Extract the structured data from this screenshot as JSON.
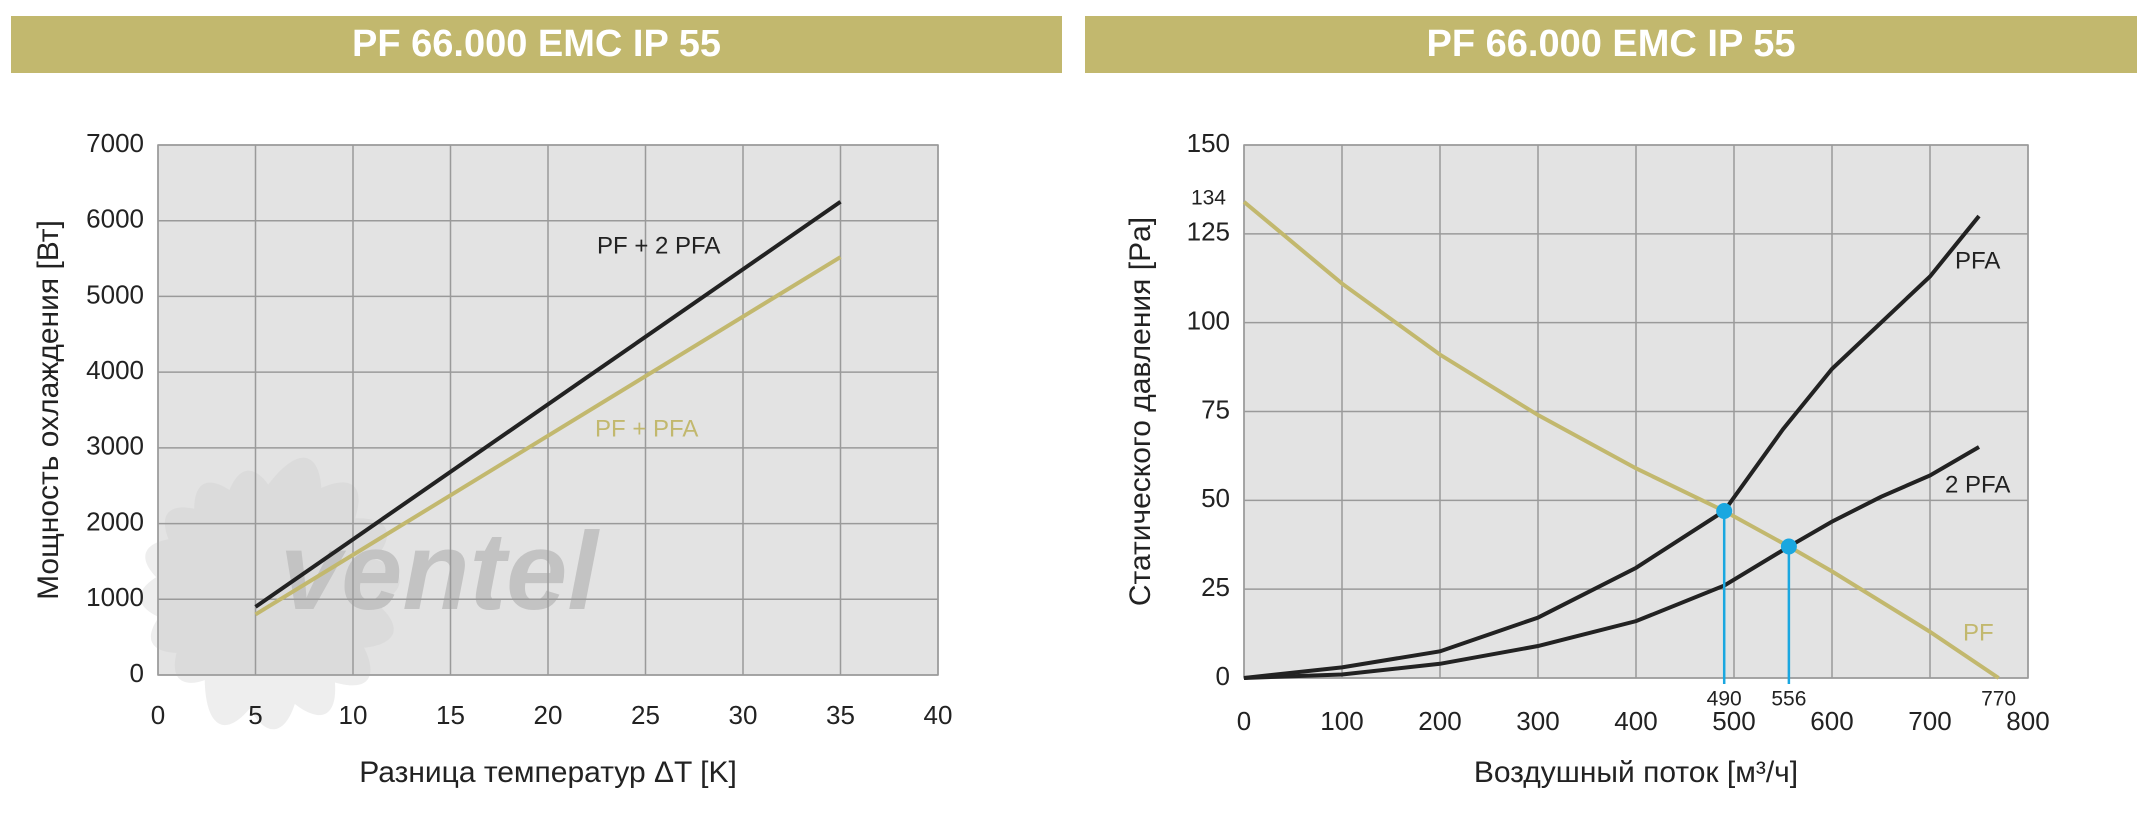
{
  "chart_data": [
    {
      "type": "line",
      "title": "PF 66.000 EMC IP 55",
      "watermark": "ventel",
      "x_label": "Разница температур ΔT [K]",
      "y_label": "Мощность охлаждения [Вт]",
      "x": [
        5,
        35
      ],
      "series": [
        {
          "name": "PF + 2 PFA",
          "color": "#222222",
          "values": [
            900,
            6250
          ]
        },
        {
          "name": "PF + PFA",
          "color": "#c2b86e",
          "values": [
            800,
            5520
          ]
        }
      ],
      "xlim": [
        0,
        40
      ],
      "xticks": [
        0,
        5,
        10,
        15,
        20,
        25,
        30,
        35,
        40
      ],
      "ylim": [
        0,
        7000
      ],
      "yticks": [
        0,
        1000,
        2000,
        3000,
        4000,
        5000,
        6000,
        7000
      ],
      "grid": true
    },
    {
      "type": "line",
      "title": "PF 66.000 EMC IP 55",
      "x_label": "Воздушный поток [м³/ч]",
      "y_label": "Статического давления [Pa]",
      "series": [
        {
          "name": "PF",
          "color": "#c2b86e",
          "x": [
            0,
            100,
            200,
            300,
            400,
            490,
            556,
            600,
            700,
            770
          ],
          "values": [
            134,
            111,
            91,
            74,
            59,
            47,
            37,
            30,
            13,
            0
          ]
        },
        {
          "name": "PFA",
          "color": "#222222",
          "x": [
            0,
            100,
            200,
            300,
            400,
            490,
            550,
            600,
            700,
            750
          ],
          "values": [
            0,
            3,
            7.5,
            17,
            31,
            47,
            70,
            87,
            113,
            130
          ]
        },
        {
          "name": "2 PFA",
          "color": "#222222",
          "x": [
            0,
            100,
            200,
            300,
            400,
            490,
            556,
            600,
            650,
            700,
            750
          ],
          "values": [
            0,
            1,
            4,
            9,
            16,
            26,
            37,
            44,
            51,
            57,
            65
          ]
        }
      ],
      "markers": {
        "color": "#1aa7e0",
        "x": [
          490,
          556
        ],
        "values": [
          47,
          37
        ]
      },
      "xlim": [
        0,
        800
      ],
      "xticks": [
        0,
        100,
        200,
        300,
        400,
        500,
        600,
        700,
        800
      ],
      "ylim": [
        0,
        150
      ],
      "yticks": [
        0,
        25,
        50,
        75,
        100,
        125,
        150
      ],
      "grid": true
    }
  ]
}
